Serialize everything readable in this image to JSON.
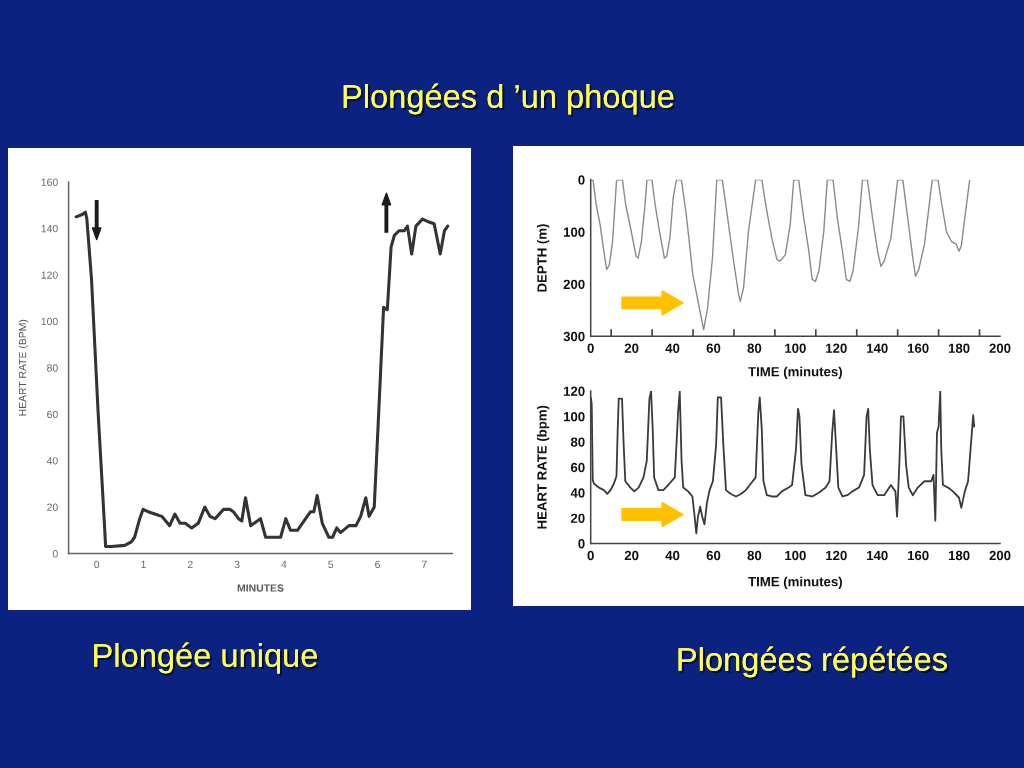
{
  "chart_data": [
    {
      "type": "line",
      "title": "Plongées d ’un phoque",
      "annotations": [
        "Plongée unique"
      ],
      "xlabel": "MINUTES",
      "ylabel": "HEART RATE (BPM)",
      "xlim": [
        -0.6,
        7.6
      ],
      "ylim": [
        0,
        160
      ],
      "xticks": [
        0,
        1,
        2,
        3,
        4,
        5,
        6,
        7
      ],
      "yticks": [
        0,
        20,
        40,
        60,
        80,
        100,
        120,
        140,
        160
      ],
      "line_style": "solid",
      "series": [
        {
          "color": "#333333",
          "x": [
            -0.44,
            -0.31,
            -0.24,
            -0.21,
            -0.11,
            0.03,
            0.17,
            0.19,
            0.31,
            0.6,
            0.74,
            0.81,
            0.92,
            0.99,
            1.1,
            1.24,
            1.39,
            1.56,
            1.67,
            1.78,
            1.89,
            2.03,
            2.17,
            2.31,
            2.42,
            2.53,
            2.71,
            2.85,
            2.92,
            3.03,
            3.1,
            3.18,
            3.29,
            3.5,
            3.61,
            3.79,
            3.93,
            4.04,
            4.14,
            4.29,
            4.43,
            4.57,
            4.64,
            4.71,
            4.82,
            4.96,
            5.04,
            5.13,
            5.21,
            5.39,
            5.54,
            5.64,
            5.75,
            5.82,
            5.93,
            6.01,
            6.13,
            6.21,
            6.29,
            6.36,
            6.46,
            6.57,
            6.64,
            6.73,
            6.82,
            6.96,
            7.07,
            7.21,
            7.34,
            7.43,
            7.5
          ],
          "values": [
            145,
            146,
            147,
            144,
            118,
            61,
            11,
            3,
            3,
            3.5,
            5,
            7,
            15,
            19,
            18,
            17,
            16,
            12,
            17,
            13,
            13,
            11,
            13,
            20,
            16,
            15,
            19,
            19,
            18,
            15,
            14,
            24,
            12,
            15,
            7,
            7,
            7,
            15,
            10,
            10,
            14,
            18,
            18,
            25,
            13,
            7,
            7,
            11,
            9,
            12,
            12,
            16,
            24,
            16,
            20,
            54,
            106,
            105,
            132,
            137,
            139,
            139,
            141,
            129,
            141,
            144,
            143,
            142,
            129,
            139,
            141
          ]
        }
      ]
    },
    {
      "type": "line",
      "xlabel": "TIME (minutes)",
      "ylabel": "DEPTH (m)",
      "xlim": [
        0,
        200
      ],
      "ylim": [
        300,
        0
      ],
      "xticks": [
        0,
        {
          "value": 10,
          "label": null
        },
        20,
        {
          "value": 30,
          "label": null
        },
        40,
        {
          "value": 50,
          "label": null
        },
        60,
        {
          "value": 70,
          "label": null
        },
        80,
        {
          "value": 90,
          "label": null
        },
        100,
        {
          "value": 110,
          "label": null
        },
        120,
        {
          "value": 130,
          "label": null
        },
        140,
        {
          "value": 150,
          "label": null
        },
        160,
        {
          "value": 170,
          "label": null
        },
        180,
        {
          "value": 190,
          "label": null
        },
        200
      ],
      "yticks": [
        0,
        100,
        200,
        300
      ],
      "line_style": "solid",
      "series": [
        {
          "color": "#8a8a8a",
          "x": [
            0,
            1.1,
            2.7,
            4.6,
            6.2,
            7.8,
            9.1,
            10.7,
            12.6,
            13.4,
            15.5,
            17.1,
            19.5,
            22.2,
            23.2,
            24.8,
            26.4,
            27.5,
            29.9,
            31.5,
            33.6,
            36,
            37.1,
            38.7,
            40.3,
            41.9,
            44.3,
            46.7,
            49.9,
            53.1,
            55.2,
            57.1,
            59.5,
            61.6,
            64.3,
            66.7,
            69.6,
            72.3,
            73.1,
            74.7,
            77.1,
            80.6,
            83.6,
            86.1,
            88.5,
            91,
            92.6,
            95.1,
            97.5,
            99.2,
            101.6,
            104.1,
            106.6,
            108.2,
            109.8,
            111.5,
            113.9,
            115.6,
            118.4,
            120.5,
            123,
            124.9,
            126.6,
            128.2,
            130.8,
            132.8,
            135.2,
            137.7,
            140.2,
            141.8,
            143.4,
            146.7,
            150,
            152.5,
            154.9,
            157.4,
            158.7,
            160.3,
            163.1,
            166.9,
            169.7,
            171.3,
            173.8,
            176.2,
            178.7,
            180,
            181.1,
            182.8,
            185.2
          ],
          "values": [
            0,
            0,
            48,
            86,
            131,
            172,
            163,
            118,
            3,
            0,
            0,
            48,
            93,
            147,
            150,
            118,
            54,
            0,
            0,
            48,
            99,
            150,
            147,
            112,
            35,
            0,
            0,
            67,
            182,
            246,
            287,
            246,
            150,
            0,
            0,
            67,
            150,
            220,
            233,
            207,
            99,
            0,
            0,
            61,
            112,
            153,
            156,
            144,
            86,
            0,
            0,
            73,
            137,
            191,
            195,
            175,
            99,
            0,
            0,
            73,
            137,
            191,
            195,
            175,
            93,
            0,
            0,
            73,
            137,
            166,
            156,
            112,
            0,
            0,
            73,
            150,
            185,
            172,
            124,
            0,
            0,
            41,
            99,
            118,
            124,
            137,
            127,
            73,
            0
          ]
        }
      ]
    },
    {
      "type": "line",
      "annotations": [
        "Plongées répétées"
      ],
      "xlabel": "TIME (minutes)",
      "ylabel": "HEART RATE (bpm)",
      "xlim": [
        0,
        200
      ],
      "ylim": [
        0,
        120
      ],
      "xticks": [
        0,
        20,
        40,
        60,
        80,
        100,
        120,
        140,
        160,
        180,
        200
      ],
      "yticks": [
        0,
        20,
        40,
        60,
        80,
        100,
        120
      ],
      "line_style": "solid",
      "series": [
        {
          "color": "#3a3a3a",
          "x": [
            0,
            0.5,
            1,
            1.6,
            4,
            6.5,
            8.1,
            9.7,
            11.3,
            12.6,
            13.2,
            13.7,
            15.3,
            16.1,
            16.9,
            19.4,
            21.3,
            23.4,
            25.8,
            27.4,
            28.7,
            29.5,
            30.3,
            31,
            33.1,
            35.5,
            38.4,
            41.1,
            42.7,
            43.5,
            44.4,
            45.2,
            47.6,
            49.7,
            50.8,
            51.6,
            52.4,
            53.5,
            54.5,
            55.6,
            56.8,
            58.1,
            59.7,
            61.3,
            62.1,
            63.7,
            64.8,
            66.1,
            68.5,
            71,
            73.4,
            75.8,
            78.2,
            80.6,
            81.9,
            82.6,
            83.6,
            84.4,
            86.1,
            88.5,
            91,
            93.4,
            96.7,
            98.4,
            100.3,
            101.3,
            102,
            103,
            104.9,
            108.2,
            111.5,
            114.8,
            116.7,
            118,
            118.9,
            119.7,
            121,
            123,
            125.4,
            127.9,
            131.1,
            133.6,
            134.8,
            135.6,
            136.4,
            137.7,
            140.2,
            143.4,
            146.7,
            148.9,
            149.7,
            150.8,
            151.6,
            152.8,
            154.1,
            155.4,
            157.4,
            159.8,
            163.1,
            166.4,
            167.5,
            168.4,
            169.2,
            170,
            170.8,
            171.3,
            172.1,
            174.6,
            177,
            180,
            181.1,
            182.8,
            184.4,
            185.6,
            186.9,
            187.4
          ],
          "values": [
            115,
            110,
            50,
            47,
            44,
            42,
            39,
            42,
            47,
            53,
            90,
            114,
            114,
            78,
            49,
            44,
            41,
            44,
            52,
            65,
            114,
            120,
            90,
            52,
            42,
            42,
            47,
            52,
            103,
            120,
            65,
            44,
            41,
            37,
            21,
            8,
            21,
            29,
            21,
            15,
            32,
            42,
            49,
            78,
            115,
            115,
            78,
            42,
            39,
            37,
            39,
            42,
            47,
            52,
            103,
            115,
            90,
            49,
            38,
            37,
            37,
            41,
            44,
            46,
            74,
            106,
            100,
            62,
            38,
            37,
            40,
            44,
            49,
            87,
            105,
            82,
            44,
            37,
            38,
            41,
            44,
            54,
            100,
            106,
            74,
            46,
            38,
            38,
            46,
            41,
            21,
            62,
            100,
            100,
            62,
            44,
            38,
            44,
            49,
            49,
            54,
            18,
            87,
            92,
            120,
            74,
            46,
            44,
            41,
            36,
            28,
            41,
            49,
            74,
            101,
            92
          ]
        }
      ]
    }
  ]
}
